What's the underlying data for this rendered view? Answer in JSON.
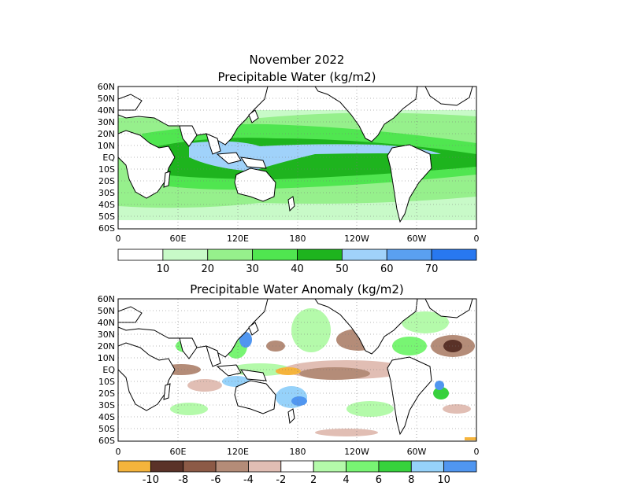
{
  "header": {
    "title": "November 2022",
    "panel1_title": "Precipitable Water (kg/m2)",
    "panel2_title": "Precipitable Water Anomaly (kg/m2)"
  },
  "axes": {
    "lat_labels": [
      "60N",
      "50N",
      "40N",
      "30N",
      "20N",
      "10N",
      "EQ",
      "10S",
      "20S",
      "30S",
      "40S",
      "50S",
      "60S"
    ],
    "lon_labels": [
      "0",
      "60E",
      "120E",
      "180",
      "120W",
      "60W",
      "0"
    ]
  },
  "colorbar1": {
    "labels": [
      "10",
      "20",
      "30",
      "40",
      "50",
      "60",
      "70"
    ],
    "colors": [
      "#ffffff",
      "#c8fac8",
      "#96f08c",
      "#50e650",
      "#1eb41e",
      "#a0d2fa",
      "#5aa0f0",
      "#2878f0"
    ]
  },
  "colorbar2": {
    "labels": [
      "-10",
      "-8",
      "-6",
      "-4",
      "-2",
      "2",
      "4",
      "6",
      "8",
      "10"
    ],
    "colors": [
      "#f5b43c",
      "#5a3228",
      "#8c5a46",
      "#b48c78",
      "#e1beb4",
      "#ffffff",
      "#b4faaa",
      "#78f573",
      "#37d23c",
      "#96d2fa",
      "#5096f0"
    ]
  }
}
